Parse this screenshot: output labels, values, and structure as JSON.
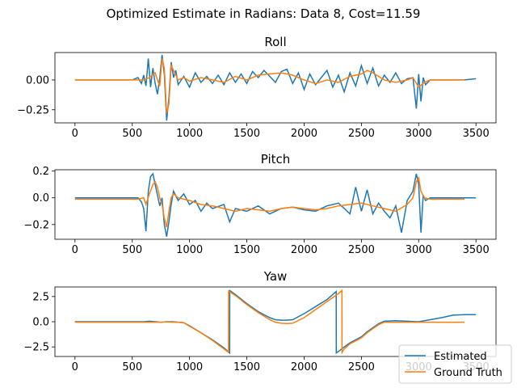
{
  "figure": {
    "suptitle": "Optimized Estimate in Radians: Data 8, Cost=11.59"
  },
  "colors": {
    "estimated": "#1f77b4",
    "ground_truth": "#ff7f0e"
  },
  "chart_data": [
    {
      "type": "line",
      "title": "Roll",
      "xlim": [
        -175,
        3675
      ],
      "ylim": [
        -0.36,
        0.23
      ],
      "xticks": [
        0,
        500,
        1000,
        1500,
        2000,
        2500,
        3000,
        3500
      ],
      "yticks": [
        -0.25,
        0.0
      ],
      "ytick_labels": [
        "−0.25",
        "0.00"
      ],
      "grid": false,
      "series": [
        {
          "name": "Estimated",
          "x": [
            0,
            100,
            200,
            300,
            400,
            500,
            550,
            580,
            600,
            620,
            640,
            660,
            680,
            700,
            720,
            740,
            760,
            780,
            800,
            820,
            840,
            860,
            880,
            900,
            950,
            1000,
            1050,
            1100,
            1150,
            1200,
            1250,
            1300,
            1350,
            1400,
            1450,
            1500,
            1550,
            1600,
            1650,
            1700,
            1750,
            1800,
            1850,
            1900,
            1950,
            2000,
            2050,
            2100,
            2150,
            2200,
            2250,
            2300,
            2350,
            2400,
            2450,
            2500,
            2550,
            2600,
            2650,
            2700,
            2750,
            2800,
            2850,
            2900,
            2950,
            2980,
            3000,
            3020,
            3040,
            3060,
            3100,
            3200,
            3300,
            3400,
            3500
          ],
          "y": [
            0.0,
            0.0,
            0.0,
            0.0,
            0.0,
            0.0,
            0.02,
            -0.03,
            0.04,
            -0.05,
            0.18,
            -0.06,
            0.1,
            -0.03,
            -0.12,
            0.02,
            0.21,
            0.05,
            -0.34,
            -0.15,
            0.15,
            0.02,
            0.08,
            -0.04,
            0.03,
            -0.06,
            0.06,
            -0.02,
            0.03,
            -0.03,
            0.04,
            -0.04,
            0.06,
            -0.02,
            0.05,
            -0.03,
            0.07,
            0.02,
            0.08,
            0.03,
            -0.02,
            0.07,
            0.09,
            -0.03,
            0.06,
            -0.08,
            0.05,
            -0.04,
            0.02,
            0.08,
            -0.06,
            0.04,
            -0.1,
            0.06,
            -0.05,
            0.12,
            -0.03,
            0.1,
            -0.05,
            0.04,
            -0.02,
            0.06,
            -0.03,
            0.01,
            0.02,
            -0.24,
            0.05,
            -0.18,
            0.02,
            -0.04,
            0.0,
            0.0,
            0.0,
            0.0,
            0.01
          ]
        },
        {
          "name": "Ground Truth",
          "x": [
            0,
            100,
            200,
            300,
            400,
            500,
            550,
            600,
            650,
            700,
            720,
            740,
            760,
            780,
            800,
            820,
            840,
            860,
            880,
            900,
            950,
            1000,
            1100,
            1200,
            1300,
            1400,
            1500,
            1600,
            1700,
            1800,
            1850,
            1900,
            1950,
            2000,
            2100,
            2200,
            2300,
            2400,
            2500,
            2550,
            2600,
            2700,
            2800,
            2900,
            2950,
            3000,
            3050,
            3100,
            3200,
            3300,
            3400
          ],
          "y": [
            0.0,
            0.0,
            0.0,
            0.0,
            0.0,
            0.0,
            0.0,
            0.0,
            0.02,
            0.06,
            0.0,
            -0.05,
            0.18,
            0.1,
            -0.28,
            -0.2,
            0.12,
            0.08,
            0.04,
            0.0,
            0.02,
            -0.01,
            0.02,
            0.0,
            -0.02,
            0.03,
            0.0,
            0.04,
            0.05,
            0.06,
            0.05,
            0.04,
            0.02,
            0.0,
            -0.03,
            0.0,
            -0.02,
            0.03,
            0.05,
            0.08,
            0.06,
            0.0,
            -0.02,
            0.0,
            0.02,
            -0.06,
            -0.02,
            0.0,
            0.0,
            0.0,
            0.0
          ]
        }
      ]
    },
    {
      "type": "line",
      "title": "Pitch",
      "xlim": [
        -175,
        3675
      ],
      "ylim": [
        -0.31,
        0.21
      ],
      "xticks": [
        0,
        500,
        1000,
        1500,
        2000,
        2500,
        3000,
        3500
      ],
      "yticks": [
        -0.2,
        0.0,
        0.2
      ],
      "ytick_labels": [
        "−0.2",
        "0.0",
        "0.2"
      ],
      "grid": false,
      "series": [
        {
          "name": "Estimated",
          "x": [
            0,
            100,
            200,
            300,
            400,
            500,
            550,
            580,
            600,
            620,
            640,
            660,
            680,
            700,
            720,
            740,
            760,
            780,
            800,
            820,
            840,
            860,
            900,
            950,
            1000,
            1050,
            1100,
            1150,
            1200,
            1300,
            1350,
            1400,
            1500,
            1600,
            1700,
            1800,
            1900,
            2000,
            2100,
            2200,
            2300,
            2400,
            2450,
            2500,
            2550,
            2600,
            2650,
            2700,
            2750,
            2800,
            2850,
            2900,
            2950,
            2980,
            3000,
            3020,
            3040,
            3060,
            3100,
            3200,
            3300,
            3400,
            3500
          ],
          "y": [
            0.0,
            0.0,
            0.0,
            0.0,
            0.0,
            0.0,
            0.0,
            -0.03,
            -0.08,
            -0.25,
            0.05,
            0.16,
            0.18,
            0.1,
            0.02,
            -0.06,
            0.0,
            -0.2,
            -0.29,
            -0.18,
            -0.05,
            0.05,
            -0.02,
            0.03,
            -0.05,
            -0.02,
            -0.1,
            -0.04,
            -0.08,
            -0.05,
            -0.18,
            -0.08,
            -0.1,
            -0.06,
            -0.12,
            -0.08,
            -0.07,
            -0.09,
            -0.1,
            -0.06,
            -0.04,
            -0.12,
            0.08,
            -0.1,
            0.06,
            -0.12,
            -0.04,
            -0.1,
            -0.15,
            -0.06,
            -0.26,
            -0.02,
            0.05,
            0.18,
            0.1,
            -0.26,
            0.02,
            -0.02,
            0.0,
            0.0,
            0.0,
            0.0,
            0.0
          ]
        },
        {
          "name": "Ground Truth",
          "x": [
            0,
            100,
            200,
            300,
            400,
            500,
            550,
            600,
            620,
            650,
            680,
            700,
            720,
            740,
            760,
            780,
            800,
            820,
            840,
            860,
            900,
            1000,
            1100,
            1200,
            1300,
            1400,
            1500,
            1600,
            1700,
            1800,
            1900,
            2000,
            2100,
            2200,
            2300,
            2400,
            2500,
            2600,
            2700,
            2800,
            2900,
            2950,
            2980,
            3000,
            3020,
            3050,
            3100,
            3200,
            3300,
            3400
          ],
          "y": [
            -0.01,
            -0.01,
            -0.01,
            -0.01,
            -0.01,
            -0.01,
            -0.01,
            0.0,
            -0.05,
            0.03,
            0.1,
            0.12,
            0.08,
            0.0,
            -0.05,
            -0.15,
            -0.22,
            -0.1,
            0.0,
            0.03,
            0.0,
            -0.02,
            -0.05,
            -0.06,
            -0.08,
            -0.1,
            -0.08,
            -0.09,
            -0.1,
            -0.08,
            -0.07,
            -0.08,
            -0.09,
            -0.08,
            -0.06,
            -0.05,
            -0.04,
            -0.06,
            -0.08,
            -0.1,
            -0.05,
            0.0,
            0.12,
            0.15,
            0.05,
            0.0,
            -0.01,
            -0.01,
            -0.01,
            -0.01
          ]
        }
      ]
    },
    {
      "type": "line",
      "title": "Yaw",
      "xlim": [
        -175,
        3675
      ],
      "ylim": [
        -3.45,
        3.45
      ],
      "xticks": [
        0,
        500,
        1000,
        1500,
        2000,
        2500,
        3000,
        3500
      ],
      "yticks": [
        -2.5,
        0.0,
        2.5
      ],
      "ytick_labels": [
        "−2.5",
        "0.0",
        "2.5"
      ],
      "grid": false,
      "legend": "bottom-right",
      "series": [
        {
          "name": "Estimated",
          "x": [
            0,
            100,
            200,
            300,
            400,
            500,
            600,
            650,
            700,
            750,
            800,
            850,
            900,
            950,
            1000,
            1100,
            1200,
            1300,
            1350,
            1351,
            1400,
            1500,
            1600,
            1700,
            1750,
            1800,
            1850,
            1900,
            2000,
            2100,
            2200,
            2280,
            2281,
            2300,
            2350,
            2400,
            2500,
            2550,
            2600,
            2650,
            2700,
            2800,
            2900,
            3000,
            3100,
            3200,
            3300,
            3400,
            3500
          ],
          "y": [
            0.0,
            0.0,
            0.0,
            0.0,
            0.0,
            0.0,
            0.0,
            0.05,
            0.0,
            -0.05,
            0.0,
            0.0,
            -0.05,
            -0.1,
            -0.4,
            -1.1,
            -1.8,
            -2.6,
            -3.1,
            3.1,
            2.7,
            1.8,
            1.0,
            0.4,
            0.2,
            0.15,
            0.15,
            0.2,
            0.8,
            1.5,
            2.2,
            3.0,
            -3.1,
            -2.95,
            -2.5,
            -2.1,
            -1.5,
            -1.0,
            -0.6,
            -0.2,
            0.05,
            0.1,
            0.05,
            0.0,
            0.2,
            0.4,
            0.65,
            0.7,
            0.7
          ]
        },
        {
          "name": "Ground Truth",
          "x": [
            0,
            100,
            200,
            300,
            400,
            500,
            600,
            700,
            750,
            800,
            850,
            900,
            950,
            1000,
            1100,
            1200,
            1300,
            1340,
            1341,
            1400,
            1500,
            1600,
            1700,
            1750,
            1800,
            1850,
            1900,
            2000,
            2100,
            2200,
            2300,
            2330,
            2331,
            2350,
            2400,
            2500,
            2550,
            2600,
            2650,
            2700,
            2800,
            2900,
            3000,
            3100,
            3200,
            3300,
            3400
          ],
          "y": [
            -0.05,
            -0.05,
            -0.05,
            -0.05,
            -0.05,
            -0.05,
            -0.05,
            -0.05,
            -0.05,
            0.0,
            -0.05,
            -0.05,
            -0.1,
            -0.45,
            -1.1,
            -1.85,
            -2.7,
            -3.05,
            3.05,
            2.6,
            1.7,
            0.9,
            0.2,
            -0.05,
            -0.15,
            -0.18,
            -0.15,
            0.4,
            1.2,
            2.0,
            2.8,
            3.1,
            -3.05,
            -2.7,
            -2.2,
            -1.6,
            -1.1,
            -0.7,
            -0.3,
            -0.05,
            -0.05,
            -0.05,
            -0.05,
            -0.05,
            -0.05,
            -0.05,
            -0.05
          ]
        }
      ]
    }
  ]
}
